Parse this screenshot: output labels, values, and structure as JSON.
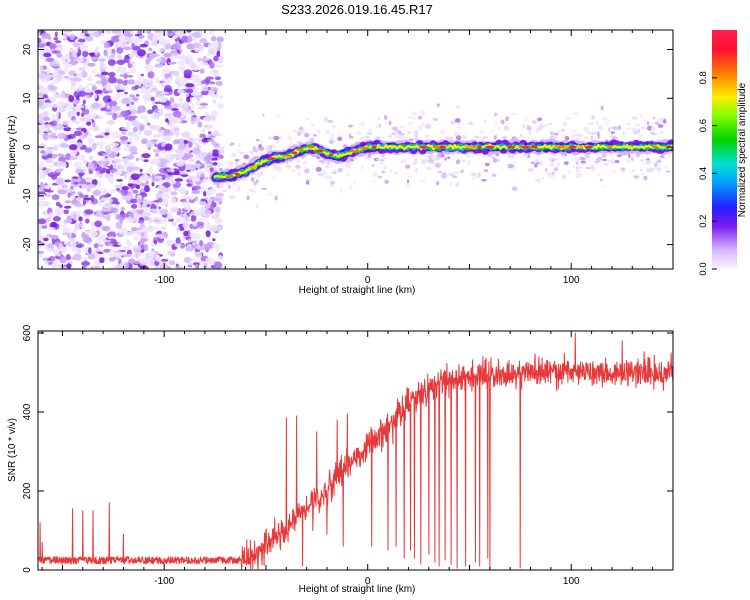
{
  "title": "S233.2026.019.16.45.R17",
  "chart_data": [
    {
      "type": "heatmap",
      "xlabel": "Height of straight line (km)",
      "ylabel": "Frequency (Hz)",
      "xlim": [
        -162,
        150
      ],
      "ylim": [
        -25,
        24
      ],
      "xticks": [
        -100,
        0,
        100
      ],
      "xtick_labels": [
        "-100",
        "0",
        "100"
      ],
      "yticks": [
        -20,
        -10,
        0,
        10,
        20
      ],
      "ytick_labels": [
        "-20",
        "-10",
        "0",
        "10",
        "20"
      ],
      "ridge": {
        "x": [
          -75,
          -68,
          -60,
          -52,
          -45,
          -40,
          -35,
          -28,
          -22,
          -15,
          -8,
          0,
          10,
          20,
          40,
          60,
          80,
          100,
          120,
          150
        ],
        "y": [
          -6,
          -6,
          -5,
          -3,
          -2,
          -2,
          -1,
          0,
          -1,
          -2,
          -1,
          0,
          0,
          0,
          0,
          0,
          0,
          0,
          0,
          0
        ]
      },
      "colorbar": {
        "label": "Normalized spectral amplitude",
        "range": [
          0,
          1
        ],
        "ticks": [
          0.0,
          0.2,
          0.4,
          0.6,
          0.8
        ],
        "tick_labels": [
          "0.0",
          "0.2",
          "0.4",
          "0.6",
          "0.8"
        ]
      }
    },
    {
      "type": "line",
      "xlabel": "Height of straight line (km)",
      "ylabel": "SNR (10 * v/v)",
      "xlim": [
        -162,
        150
      ],
      "ylim": [
        0,
        605
      ],
      "xticks": [
        -100,
        0,
        100
      ],
      "xtick_labels": [
        "-100",
        "0",
        "100"
      ],
      "yticks": [
        0,
        200,
        400,
        600
      ],
      "ytick_labels": [
        "0",
        "200",
        "400",
        "600"
      ],
      "series": [
        {
          "name": "SNR",
          "color": "#e8383a",
          "x": [
            -162,
            -150,
            -140,
            -130,
            -120,
            -110,
            -100,
            -90,
            -80,
            -70,
            -62,
            -55,
            -50,
            -45,
            -40,
            -35,
            -30,
            -25,
            -20,
            -15,
            -10,
            -5,
            0,
            5,
            10,
            15,
            20,
            30,
            40,
            50,
            60,
            80,
            100,
            120,
            140,
            150
          ],
          "y": [
            22,
            22,
            22,
            22,
            22,
            22,
            22,
            22,
            22,
            22,
            22,
            42,
            62,
            82,
            102,
            132,
            162,
            182,
            212,
            232,
            257,
            282,
            310,
            335,
            360,
            385,
            430,
            460,
            480,
            490,
            495,
            500,
            500,
            500,
            500,
            500
          ]
        }
      ],
      "spikes": [
        {
          "x": -161,
          "y": 120
        },
        {
          "x": -160,
          "y": 70
        },
        {
          "x": -145,
          "y": 155
        },
        {
          "x": -140,
          "y": 150
        },
        {
          "x": -135,
          "y": 150
        },
        {
          "x": -127,
          "y": 170
        },
        {
          "x": -120,
          "y": 90
        },
        {
          "x": -40,
          "y": 385
        },
        {
          "x": -35,
          "y": 390
        },
        {
          "x": -25,
          "y": 350
        },
        {
          "x": -15,
          "y": 380
        },
        {
          "x": -10,
          "y": 395
        },
        {
          "x": 10,
          "y": 410
        },
        {
          "x": 20,
          "y": 460
        },
        {
          "x": 35,
          "y": 470
        },
        {
          "x": 80,
          "y": 520
        },
        {
          "x": 102,
          "y": 600
        },
        {
          "x": 125,
          "y": 580
        }
      ],
      "dropouts": [
        {
          "x": -32,
          "y": 10
        },
        {
          "x": -27,
          "y": 100
        },
        {
          "x": -20,
          "y": 90
        },
        {
          "x": -12,
          "y": 60
        },
        {
          "x": 2,
          "y": 60
        },
        {
          "x": 10,
          "y": 50
        },
        {
          "x": 14,
          "y": 60
        },
        {
          "x": 18,
          "y": 30
        },
        {
          "x": 21,
          "y": 50
        },
        {
          "x": 23,
          "y": 30
        },
        {
          "x": 26,
          "y": 15
        },
        {
          "x": 30,
          "y": 40
        },
        {
          "x": 33,
          "y": 20
        },
        {
          "x": 35,
          "y": 10
        },
        {
          "x": 38,
          "y": 25
        },
        {
          "x": 41,
          "y": 15
        },
        {
          "x": 44,
          "y": 5
        },
        {
          "x": 48,
          "y": 10
        },
        {
          "x": 53,
          "y": 20
        },
        {
          "x": 55,
          "y": 10
        },
        {
          "x": 59,
          "y": 30
        },
        {
          "x": 60,
          "y": 5
        },
        {
          "x": 75,
          "y": 5
        }
      ]
    }
  ]
}
